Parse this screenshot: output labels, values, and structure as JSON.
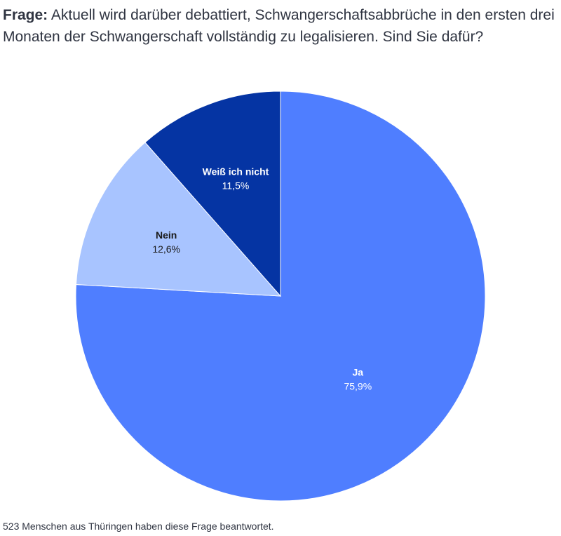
{
  "question": {
    "label": "Frage:",
    "text": " Aktuell wird darüber debattiert, Schwangerschaftsabbrüche in den ersten drei Monaten der Schwangerschaft vollständig zu legalisieren. Sind Sie dafür?"
  },
  "chart_data": {
    "type": "pie",
    "title": "",
    "slices": [
      {
        "label": "Ja",
        "value": 75.9,
        "value_label": "75,9%",
        "color": "#4f7eff",
        "text_color": "#ffffff"
      },
      {
        "label": "Nein",
        "value": 12.6,
        "value_label": "12,6%",
        "color": "#a8c4ff",
        "text_color": "#1a1a1a"
      },
      {
        "label": "Weiß ich nicht",
        "value": 11.5,
        "value_label": "11,5%",
        "color": "#0534a3",
        "text_color": "#ffffff"
      }
    ],
    "start_angle": "12 o'clock",
    "direction": "clockwise"
  },
  "footnote": "523 Menschen aus Thüringen haben diese Frage beantwortet."
}
